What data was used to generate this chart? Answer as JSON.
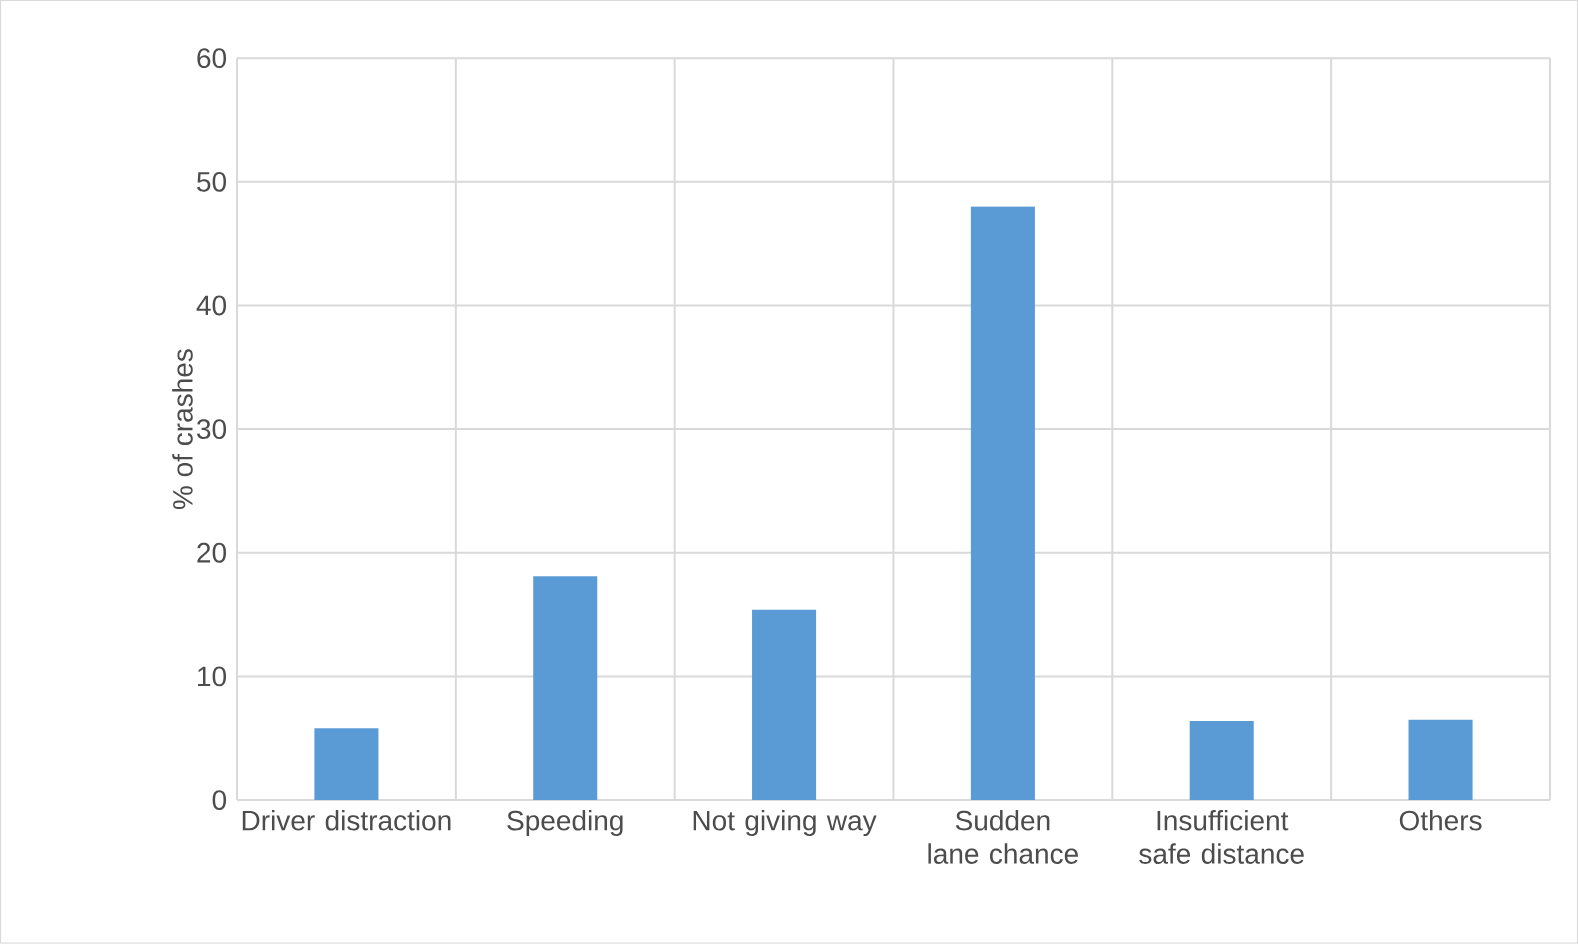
{
  "chart_data": {
    "type": "bar",
    "ylabel": "% of crashes",
    "categories": [
      "Driver distraction",
      "Speeding",
      "Not giving way",
      "Sudden lane chance",
      "Insufficient safe distance",
      "Others"
    ],
    "values": [
      5.8,
      18.1,
      15.4,
      48,
      6.4,
      6.5
    ],
    "color": "#5b9bd5",
    "ylim": [
      0,
      60
    ],
    "yticks": [
      0,
      10,
      20,
      30,
      40,
      50,
      60
    ],
    "grid": true
  }
}
